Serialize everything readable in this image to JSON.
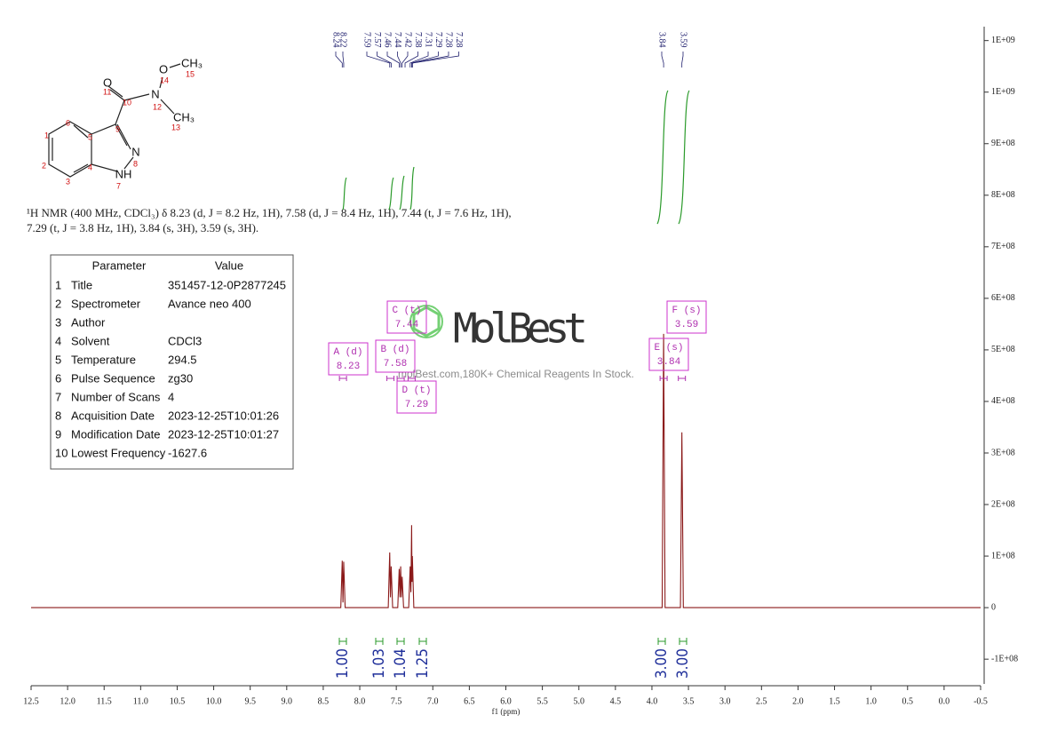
{
  "chart_data": {
    "type": "line",
    "x_label": "f1 (ppm)",
    "color": "#8b1a1a",
    "x": [
      12.5,
      8.26,
      8.24,
      8.23,
      8.22,
      8.2,
      7.61,
      7.59,
      7.58,
      7.57,
      7.55,
      7.48,
      7.46,
      7.45,
      7.44,
      7.43,
      7.42,
      7.4,
      7.33,
      7.31,
      7.3,
      7.29,
      7.285,
      7.28,
      7.26,
      3.86,
      3.84,
      3.82,
      3.61,
      3.59,
      3.57,
      -0.5
    ],
    "values": [
      0,
      0,
      91000000,
      10000000,
      89000000,
      0,
      0,
      107000000,
      20000000,
      80000000,
      0,
      0,
      75000000,
      20000000,
      80000000,
      20000000,
      60000000,
      0,
      0,
      80000000,
      30000000,
      160000000,
      50000000,
      100000000,
      0,
      0,
      531000000,
      0,
      0,
      340000000,
      0,
      0
    ],
    "xlim": [
      12.5,
      -0.5
    ],
    "xticks": [
      12.5,
      {
        "value": 12,
        "label": "12.0"
      },
      11.5,
      {
        "value": 11,
        "label": "11.0"
      },
      10.5,
      {
        "value": 10,
        "label": "10.0"
      },
      9.5,
      {
        "value": 9,
        "label": "9.0"
      },
      8.5,
      {
        "value": 8,
        "label": "8.0"
      },
      7.5,
      {
        "value": 7,
        "label": "7.0"
      },
      6.5,
      {
        "value": 6,
        "label": "6.0"
      },
      5.5,
      {
        "value": 5,
        "label": "5.0"
      },
      4.5,
      {
        "value": 4,
        "label": "4.0"
      },
      3.5,
      {
        "value": 3,
        "label": "3.0"
      },
      2.5,
      {
        "value": 2,
        "label": "2.0"
      },
      1.5,
      {
        "value": 1,
        "label": "1.0"
      },
      0.5,
      {
        "value": 0,
        "label": "0.0"
      },
      -0.5
    ],
    "ylim": [
      -148000000,
      1127000000
    ],
    "yticks": [
      {
        "value": -100000000,
        "label": "-1E+08"
      },
      0,
      {
        "value": 100000000,
        "label": "1E+08"
      },
      {
        "value": 200000000,
        "label": "2E+08"
      },
      {
        "value": 300000000,
        "label": "3E+08"
      },
      {
        "value": 400000000,
        "label": "4E+08"
      },
      {
        "value": 500000000,
        "label": "5E+08"
      },
      {
        "value": 600000000,
        "label": "6E+08"
      },
      {
        "value": 700000000,
        "label": "7E+08"
      },
      {
        "value": 800000000,
        "label": "8E+08"
      },
      {
        "value": 900000000,
        "label": "9E+08"
      },
      {
        "value": 1000000000,
        "label": "1E+09"
      },
      {
        "value": 1100000000,
        "label": "1E+09"
      }
    ],
    "peak_labels": [
      "8.24",
      "8.22",
      "7.59",
      "7.57",
      "7.46",
      "7.44",
      "7.42",
      "7.38",
      "7.31",
      "7.29",
      "7.28",
      "7.28",
      "3.84",
      "3.59"
    ],
    "multiplets": [
      {
        "label": "A (d)",
        "shift": "8.23"
      },
      {
        "label": "B (d)",
        "shift": "7.58"
      },
      {
        "label": "C (t)",
        "shift": "7.44"
      },
      {
        "label": "D (t)",
        "shift": "7.29"
      },
      {
        "label": "E (s)",
        "shift": "3.84"
      },
      {
        "label": "F (s)",
        "shift": "3.59"
      }
    ],
    "integrals": [
      "1.00",
      "1.03",
      "1.04",
      "1.25",
      "3.00",
      "3.00"
    ]
  },
  "caption": [
    "¹H NMR (400 MHz, CDCl₃) δ 8.23 (d, J = 8.2 Hz, 1H), 7.58 (d, J = 8.4 Hz, 1H), 7.44 (t, J = 7.6 Hz, 1H),",
    "7.29 (t, J = 3.8 Hz, 1H), 3.84 (s, 3H), 3.59 (s, 3H)."
  ],
  "structure": {
    "atoms": [
      "O",
      "N",
      "O",
      "CH₃",
      "CH₃",
      "N",
      "NH"
    ],
    "numbers": [
      "1",
      "2",
      "3",
      "4",
      "5",
      "6",
      "7",
      "8",
      "9",
      "10",
      "11",
      "12",
      "13",
      "14",
      "15"
    ]
  },
  "table": {
    "header": [
      "Parameter",
      "Value"
    ],
    "rows": [
      [
        "1",
        "Title",
        "351457-12-0P2877245"
      ],
      [
        "2",
        "Spectrometer",
        "Avance neo 400"
      ],
      [
        "3",
        "Author"
      ],
      [
        "4",
        "Solvent",
        "CDCl3"
      ],
      [
        "5",
        "Temperature",
        "294.5"
      ],
      [
        "6",
        "Pulse Sequence",
        "zg30"
      ],
      [
        "7",
        "Number of Scans",
        "4"
      ],
      [
        "8",
        "Acquisition Date",
        "2023-12-25T10:01:26"
      ],
      [
        "9",
        "Modification Date",
        "2023-12-25T10:01:27"
      ],
      [
        "10",
        "Lowest Frequency",
        "-1627.6"
      ]
    ]
  },
  "watermark": {
    "logo": "MolBest",
    "tagline": "molBest.com,180K+ Chemical Reagents In Stock."
  }
}
